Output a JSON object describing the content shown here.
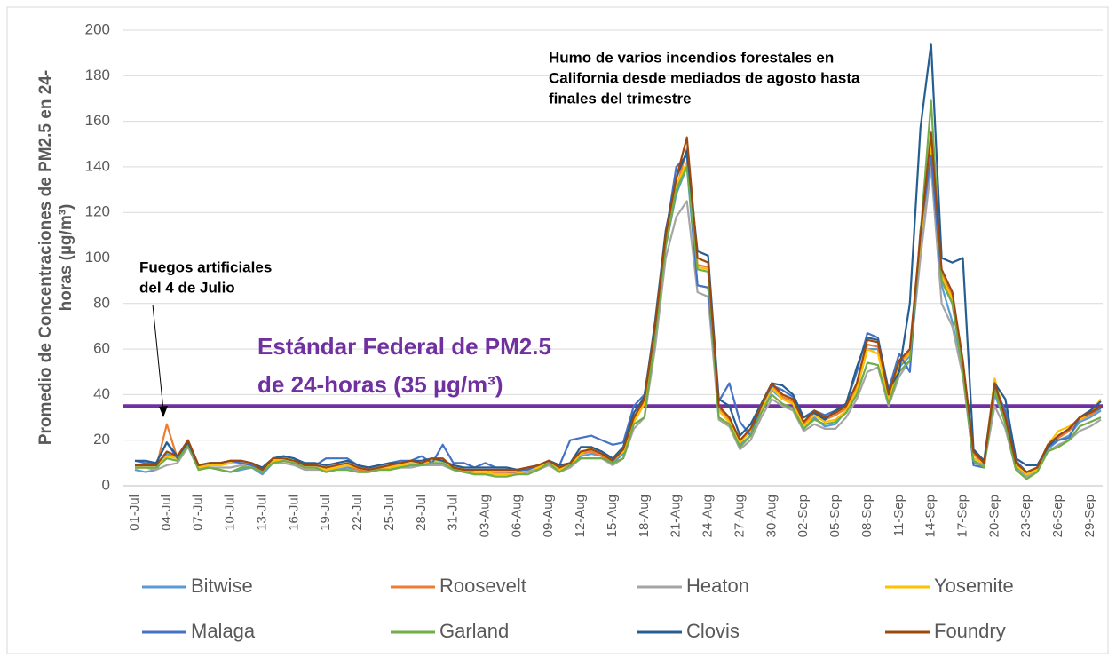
{
  "chart_data": {
    "type": "line",
    "ylabel": [
      "Promedio de Concentraciones de PM2.5 en 24-",
      "horas (µg/m³)"
    ],
    "ylim": [
      0,
      200
    ],
    "yticks": [
      0,
      20,
      40,
      60,
      80,
      100,
      120,
      140,
      160,
      180,
      200
    ],
    "grid": true,
    "categories": [
      "01-Jul",
      null,
      null,
      "04-Jul",
      null,
      null,
      "07-Jul",
      null,
      null,
      "10-Jul",
      null,
      null,
      "13-Jul",
      null,
      null,
      "16-Jul",
      null,
      null,
      "19-Jul",
      null,
      null,
      "22-Jul",
      null,
      null,
      "25-Jul",
      null,
      null,
      "28-Jul",
      null,
      null,
      "31-Jul",
      null,
      null,
      "03-Aug",
      null,
      null,
      "06-Aug",
      null,
      null,
      "09-Aug",
      null,
      null,
      "12-Aug",
      null,
      null,
      "15-Aug",
      null,
      null,
      "18-Aug",
      null,
      null,
      "21-Aug",
      null,
      null,
      "24-Aug",
      null,
      null,
      "27-Aug",
      null,
      null,
      "30-Aug",
      null,
      null,
      "02-Sep",
      null,
      null,
      "05-Sep",
      null,
      null,
      "08-Sep",
      null,
      null,
      "11-Sep",
      null,
      null,
      "14-Sep",
      null,
      null,
      "17-Sep",
      null,
      null,
      "20-Sep",
      null,
      null,
      "23-Sep",
      null,
      null,
      "26-Sep",
      null,
      null,
      "29-Sep",
      null
    ],
    "series": [
      {
        "name": "Bitwise",
        "color": "#5b9bd5",
        "values": [
          7,
          6,
          7,
          14,
          12,
          18,
          8,
          8,
          7,
          6,
          7,
          8,
          5,
          10,
          11,
          10,
          8,
          8,
          6,
          7,
          8,
          7,
          6,
          7,
          8,
          8,
          9,
          9,
          10,
          9,
          7,
          6,
          6,
          6,
          6,
          6,
          5,
          6,
          8,
          10,
          7,
          9,
          13,
          14,
          13,
          10,
          14,
          28,
          36,
          68,
          105,
          128,
          140,
          88,
          87,
          33,
          28,
          18,
          22,
          33,
          42,
          38,
          36,
          25,
          30,
          26,
          27,
          33,
          42,
          60,
          60,
          37,
          52,
          57,
          105,
          145,
          88,
          72,
          50,
          10,
          9,
          40,
          28,
          8,
          5,
          7,
          16,
          20,
          22,
          28,
          30,
          33
        ]
      },
      {
        "name": "Roosevelt",
        "color": "#ed7d31",
        "values": [
          8,
          8,
          8,
          27,
          12,
          19,
          8,
          9,
          9,
          10,
          10,
          9,
          6,
          11,
          11,
          10,
          8,
          8,
          7,
          8,
          9,
          7,
          6,
          7,
          8,
          9,
          10,
          9,
          11,
          11,
          8,
          7,
          6,
          6,
          6,
          6,
          6,
          7,
          8,
          10,
          7,
          9,
          14,
          15,
          13,
          11,
          15,
          29,
          37,
          69,
          108,
          130,
          148,
          97,
          96,
          34,
          29,
          19,
          24,
          34,
          44,
          39,
          37,
          27,
          32,
          29,
          31,
          34,
          44,
          62,
          61,
          39,
          54,
          59,
          108,
          150,
          93,
          83,
          53,
          14,
          9,
          44,
          29,
          9,
          5,
          7,
          17,
          21,
          24,
          29,
          31,
          34
        ]
      },
      {
        "name": "Heaton",
        "color": "#a5a5a5",
        "values": [
          8,
          8,
          7,
          9,
          10,
          17,
          7,
          8,
          8,
          8,
          9,
          8,
          6,
          10,
          10,
          9,
          7,
          7,
          7,
          7,
          7,
          6,
          6,
          7,
          7,
          8,
          8,
          9,
          9,
          9,
          7,
          6,
          5,
          5,
          5,
          5,
          5,
          6,
          7,
          9,
          6,
          8,
          12,
          12,
          12,
          9,
          12,
          25,
          30,
          60,
          100,
          118,
          125,
          85,
          83,
          29,
          26,
          16,
          20,
          30,
          38,
          35,
          33,
          24,
          27,
          25,
          25,
          30,
          38,
          50,
          52,
          35,
          48,
          55,
          100,
          140,
          80,
          70,
          48,
          11,
          9,
          35,
          25,
          7,
          4,
          6,
          15,
          18,
          20,
          24,
          26,
          29
        ]
      },
      {
        "name": "Yosemite",
        "color": "#ffc000",
        "values": [
          8,
          8,
          8,
          13,
          12,
          19,
          8,
          9,
          9,
          10,
          10,
          9,
          7,
          11,
          11,
          10,
          8,
          8,
          7,
          8,
          9,
          8,
          7,
          8,
          8,
          9,
          10,
          9,
          11,
          11,
          8,
          6,
          6,
          6,
          5,
          5,
          5,
          7,
          8,
          10,
          7,
          9,
          14,
          17,
          14,
          11,
          15,
          28,
          36,
          68,
          108,
          132,
          142,
          96,
          95,
          33,
          28,
          19,
          24,
          33,
          43,
          38,
          36,
          26,
          31,
          28,
          29,
          33,
          42,
          60,
          58,
          38,
          53,
          58,
          108,
          150,
          92,
          82,
          52,
          12,
          10,
          47,
          30,
          9,
          5,
          7,
          18,
          24,
          26,
          29,
          32,
          38
        ]
      },
      {
        "name": "Malaga",
        "color": "#4472c4",
        "values": [
          11,
          10,
          10,
          19,
          12,
          18,
          9,
          10,
          10,
          11,
          10,
          9,
          7,
          12,
          13,
          12,
          9,
          9,
          12,
          12,
          12,
          9,
          8,
          9,
          10,
          11,
          11,
          13,
          10,
          18,
          10,
          10,
          8,
          10,
          8,
          8,
          7,
          7,
          9,
          11,
          9,
          20,
          21,
          22,
          20,
          18,
          19,
          35,
          40,
          70,
          110,
          140,
          145,
          88,
          87,
          37,
          45,
          28,
          22,
          35,
          44,
          42,
          39,
          30,
          33,
          31,
          33,
          36,
          50,
          67,
          65,
          42,
          58,
          50,
          112,
          145,
          90,
          80,
          52,
          9,
          8,
          43,
          33,
          11,
          6,
          8,
          17,
          20,
          21,
          30,
          32,
          34
        ]
      },
      {
        "name": "Garland",
        "color": "#70ad47",
        "values": [
          8,
          8,
          8,
          12,
          11,
          18,
          7,
          8,
          7,
          6,
          8,
          8,
          6,
          10,
          11,
          10,
          8,
          8,
          6,
          7,
          7,
          6,
          6,
          7,
          7,
          8,
          9,
          9,
          10,
          10,
          7,
          6,
          5,
          5,
          4,
          4,
          5,
          5,
          7,
          10,
          6,
          9,
          12,
          12,
          12,
          10,
          12,
          27,
          30,
          65,
          105,
          130,
          140,
          95,
          94,
          30,
          27,
          17,
          22,
          32,
          40,
          36,
          34,
          25,
          29,
          27,
          28,
          32,
          40,
          54,
          53,
          36,
          50,
          55,
          110,
          169,
          90,
          80,
          50,
          11,
          8,
          42,
          27,
          7,
          3,
          6,
          15,
          17,
          20,
          26,
          28,
          30
        ]
      },
      {
        "name": "Clovis",
        "color": "#255e91",
        "values": [
          11,
          11,
          10,
          19,
          13,
          19,
          9,
          10,
          10,
          11,
          11,
          10,
          8,
          12,
          13,
          12,
          10,
          10,
          9,
          10,
          11,
          9,
          8,
          9,
          10,
          10,
          11,
          11,
          12,
          11,
          9,
          8,
          8,
          8,
          8,
          8,
          7,
          8,
          9,
          11,
          9,
          10,
          17,
          17,
          15,
          12,
          17,
          32,
          39,
          72,
          112,
          135,
          147,
          103,
          101,
          38,
          35,
          22,
          27,
          36,
          45,
          44,
          40,
          30,
          32,
          29,
          33,
          36,
          52,
          65,
          64,
          42,
          50,
          80,
          157,
          194,
          100,
          98,
          100,
          16,
          11,
          45,
          38,
          12,
          9,
          9,
          17,
          22,
          25,
          30,
          33,
          37
        ]
      },
      {
        "name": "Foundry",
        "color": "#9e480e",
        "values": [
          9,
          9,
          9,
          15,
          13,
          20,
          9,
          10,
          10,
          11,
          11,
          10,
          7,
          12,
          12,
          11,
          9,
          9,
          8,
          9,
          10,
          8,
          7,
          8,
          9,
          10,
          11,
          10,
          12,
          12,
          8,
          7,
          7,
          7,
          7,
          7,
          7,
          8,
          9,
          11,
          8,
          10,
          15,
          16,
          14,
          11,
          16,
          30,
          38,
          70,
          110,
          135,
          153,
          100,
          98,
          35,
          30,
          20,
          25,
          35,
          45,
          40,
          38,
          28,
          33,
          30,
          32,
          35,
          45,
          64,
          63,
          40,
          55,
          60,
          110,
          155,
          95,
          85,
          55,
          15,
          10,
          45,
          30,
          10,
          6,
          8,
          18,
          22,
          25,
          30,
          32,
          35
        ]
      }
    ],
    "reference_line": {
      "value": 35,
      "color": "#7030a0",
      "label": [
        "Estándar Federal de PM2.5",
        "de 24-horas (35 µg/m³)"
      ]
    },
    "annotations": [
      {
        "text": [
          "Humo de varios incendios forestales en",
          "California desde mediados de agosto hasta",
          "finales del trimestre"
        ]
      },
      {
        "text": [
          "Fuegos artificiales",
          "del 4 de Julio"
        ]
      }
    ]
  }
}
